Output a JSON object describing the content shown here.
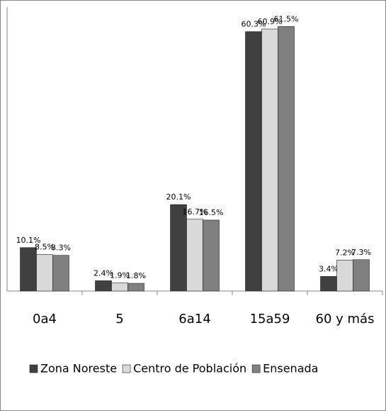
{
  "chart_data": {
    "type": "bar",
    "categories": [
      "0a4",
      "5",
      "6a14",
      "15a59",
      "60 y más"
    ],
    "series": [
      {
        "name": "Zona Noreste",
        "color": "#404040",
        "values": [
          10.1,
          2.4,
          20.1,
          60.3,
          3.4
        ],
        "value_labels": [
          "10.1%",
          "2.4%",
          "20.1%",
          "60.3%",
          "3.4%"
        ]
      },
      {
        "name": "Centro de Población",
        "color": "#d9d9d9",
        "values": [
          8.5,
          1.9,
          16.7,
          60.9,
          7.2
        ],
        "value_labels": [
          "8.5%",
          "1.9%",
          "16.7%",
          "60.9%",
          "7.2%"
        ]
      },
      {
        "name": "Ensenada",
        "color": "#808080",
        "values": [
          8.3,
          1.8,
          16.5,
          61.5,
          7.3
        ],
        "value_labels": [
          "8.3%",
          "1.8%",
          "16.5%",
          "61.5%",
          "7.3%"
        ]
      }
    ],
    "ylim": [
      0,
      66
    ],
    "legend": "bottom"
  }
}
